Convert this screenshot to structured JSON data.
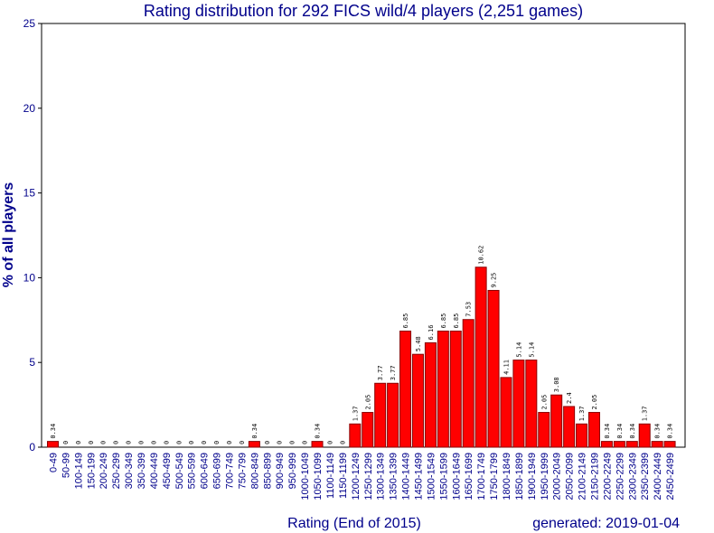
{
  "chart_data": {
    "type": "bar",
    "title": "Rating distribution for 292 FICS wild/4 players (2,251 games)",
    "xlabel": "Rating (End of 2015)",
    "ylabel": "% of all players",
    "footer": "generated: 2019-01-04",
    "ylim": [
      0,
      25
    ],
    "yticks": [
      0,
      5,
      10,
      15,
      20,
      25
    ],
    "grid": false,
    "bar_color": "#ff0000",
    "bar_edge_color": "#8b0000",
    "text_color": "#00008b",
    "categories": [
      "0-49",
      "50-99",
      "100-149",
      "150-199",
      "200-249",
      "250-299",
      "300-349",
      "350-399",
      "400-449",
      "450-499",
      "500-549",
      "550-599",
      "600-649",
      "650-699",
      "700-749",
      "750-799",
      "800-849",
      "850-899",
      "900-949",
      "950-999",
      "1000-1049",
      "1050-1099",
      "1100-1149",
      "1150-1199",
      "1200-1249",
      "1250-1299",
      "1300-1349",
      "1350-1399",
      "1400-1449",
      "1450-1499",
      "1500-1549",
      "1550-1599",
      "1600-1649",
      "1650-1699",
      "1700-1749",
      "1750-1799",
      "1800-1849",
      "1850-1899",
      "1900-1949",
      "1950-1999",
      "2000-2049",
      "2050-2099",
      "2100-2149",
      "2150-2199",
      "2200-2249",
      "2250-2299",
      "2300-2349",
      "2350-2399",
      "2400-2449",
      "2450-2499"
    ],
    "values": [
      0.34,
      0,
      0,
      0,
      0,
      0,
      0,
      0,
      0,
      0,
      0,
      0,
      0,
      0,
      0,
      0,
      0.34,
      0,
      0,
      0,
      0,
      0.34,
      0,
      0,
      1.37,
      2.05,
      3.77,
      3.77,
      6.85,
      5.48,
      6.16,
      6.85,
      6.85,
      7.53,
      10.62,
      9.25,
      4.11,
      5.14,
      5.14,
      2.05,
      3.08,
      2.4,
      1.37,
      2.05,
      0.34,
      0.34,
      0.34,
      1.37,
      0.34,
      0.34
    ]
  }
}
